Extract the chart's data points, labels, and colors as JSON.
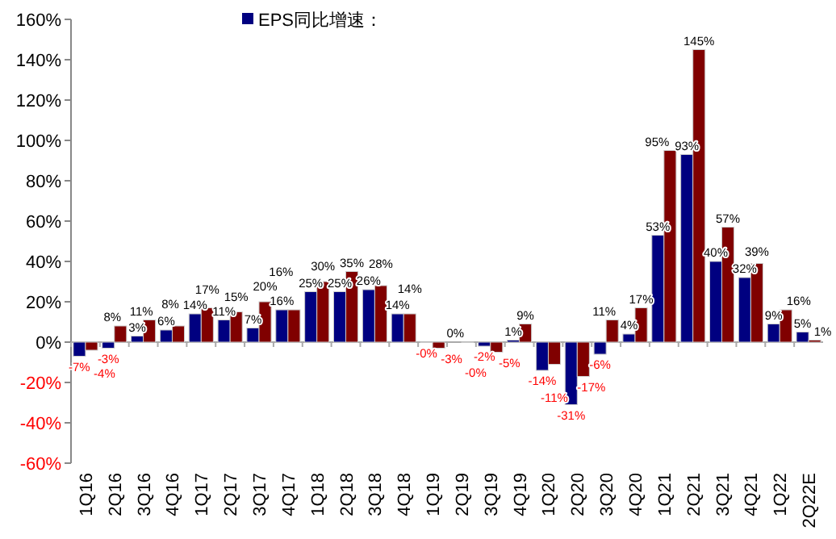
{
  "chart_data": {
    "type": "bar",
    "categories": [
      "1Q16",
      "2Q16",
      "3Q16",
      "4Q16",
      "1Q17",
      "2Q17",
      "3Q17",
      "4Q17",
      "1Q18",
      "2Q18",
      "3Q18",
      "4Q18",
      "1Q19",
      "2Q19",
      "3Q19",
      "4Q19",
      "1Q20",
      "2Q20",
      "3Q20",
      "4Q20",
      "1Q21",
      "2Q21",
      "3Q21",
      "4Q21",
      "1Q22",
      "2Q22E"
    ],
    "series": [
      {
        "name": "EPS同比增速：",
        "color": "#000080",
        "values": [
          -7,
          -3,
          3,
          6,
          14,
          11,
          7,
          16,
          25,
          25,
          26,
          14,
          -0.2,
          0,
          -2,
          1,
          -14,
          -31,
          -6,
          4,
          53,
          93,
          40,
          32,
          9,
          5
        ],
        "value_labels": [
          "-7%",
          "-3%",
          "3%",
          "6%",
          "14%",
          "11%",
          "7%",
          "16%",
          "25%",
          "25%",
          "26%",
          "14%",
          "-0%",
          "0%",
          "-2%",
          "1%",
          "-14%",
          "-31%",
          "-6%",
          "4%",
          "53%",
          "93%",
          "40%",
          "32%",
          "9%",
          "5%"
        ]
      },
      {
        "color": "#800000",
        "values": [
          -4,
          8,
          11,
          8,
          17,
          15,
          20,
          16,
          30,
          35,
          28,
          14,
          -3,
          -0.2,
          -5,
          9,
          -11,
          -17,
          11,
          17,
          95,
          145,
          57,
          39,
          16,
          1
        ],
        "value_labels": [
          "-4%",
          "8%",
          "11%",
          "8%",
          "17%",
          "15%",
          "20%",
          "16%",
          "30%",
          "35%",
          "28%",
          "14%",
          "-3%",
          "-0%",
          "-5%",
          "9%",
          "-11%",
          "-17%",
          "11%",
          "17%",
          "95%",
          "145%",
          "57%",
          "39%",
          "16%",
          "1%"
        ]
      }
    ],
    "ylim": [
      -60,
      160
    ],
    "yticks": [
      {
        "value": -60,
        "label": "-60%"
      },
      {
        "value": -40,
        "label": "-40%"
      },
      {
        "value": -20,
        "label": "-20%"
      },
      {
        "value": 0,
        "label": "0%"
      },
      {
        "value": 20,
        "label": "20%"
      },
      {
        "value": 40,
        "label": "40%"
      },
      {
        "value": 60,
        "label": "60%"
      },
      {
        "value": 80,
        "label": "80%"
      },
      {
        "value": 100,
        "label": "100%"
      },
      {
        "value": 120,
        "label": "120%"
      },
      {
        "value": 140,
        "label": "140%"
      },
      {
        "value": 160,
        "label": "160%"
      }
    ],
    "legend": "top"
  }
}
